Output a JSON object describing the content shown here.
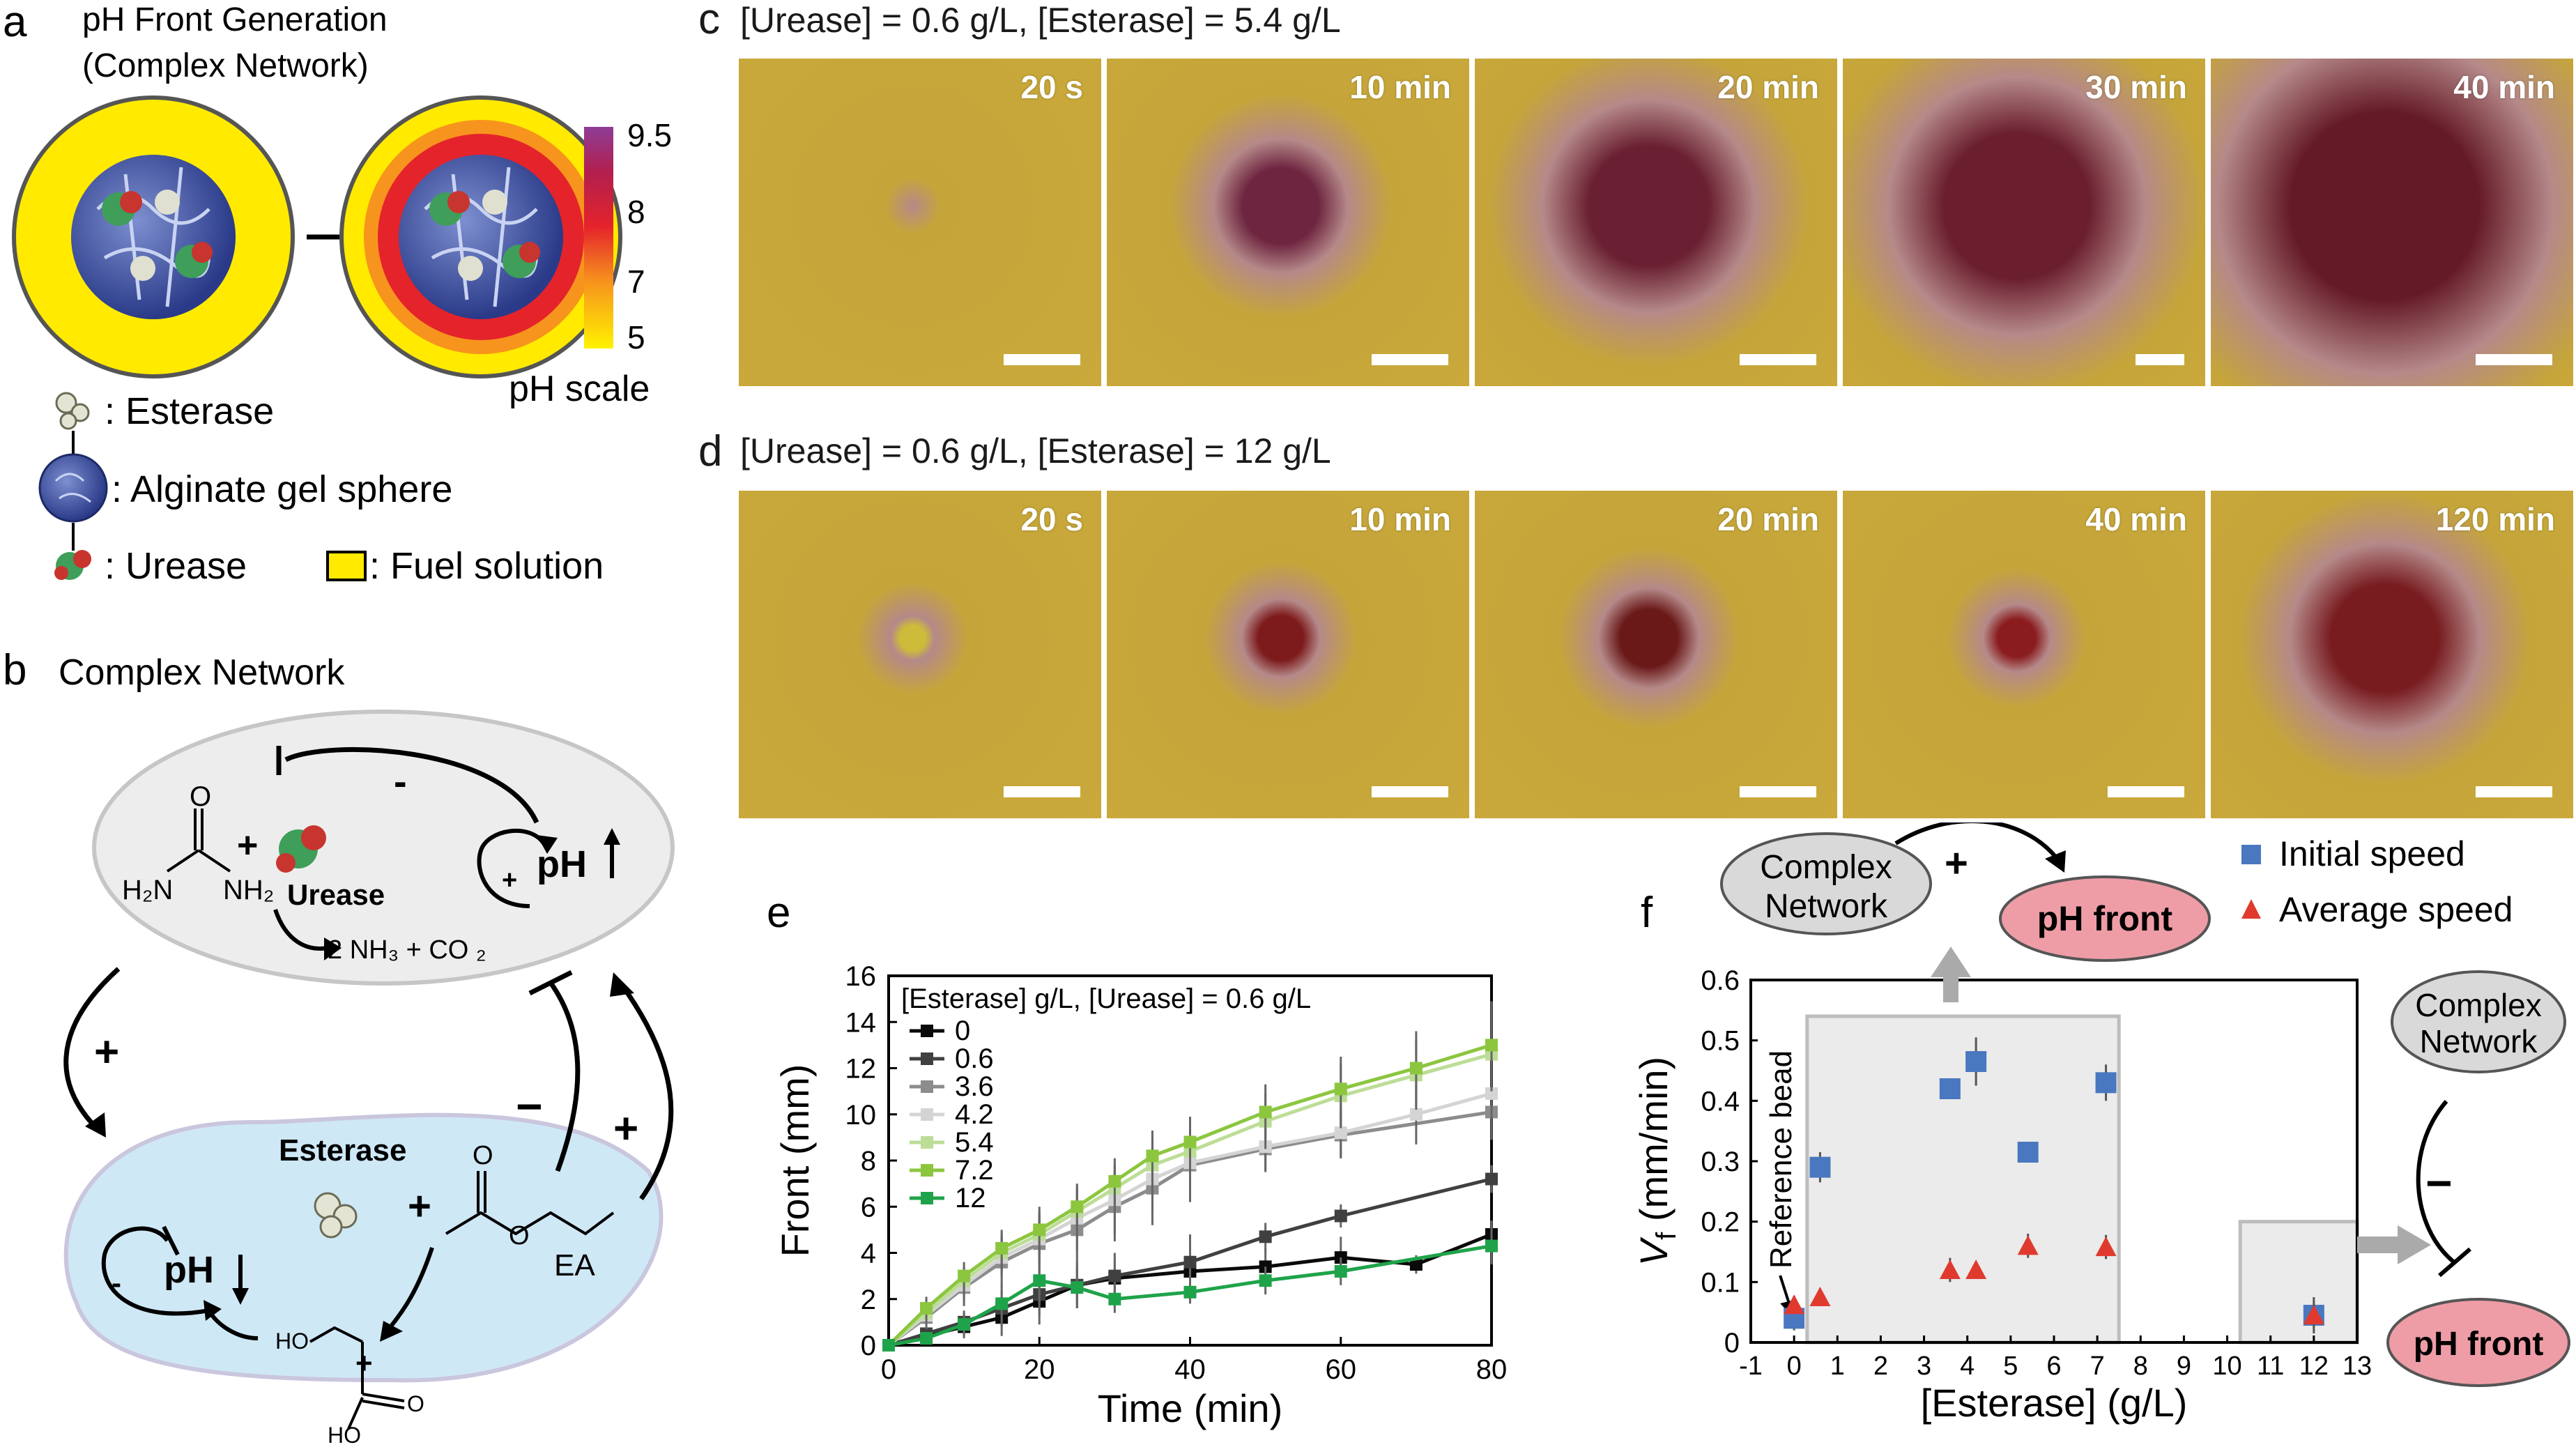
{
  "panel_a": {
    "letter": "a",
    "title_line1": "pH Front Generation",
    "title_line2": "(Complex Network)",
    "ph_scale_label": "pH scale",
    "ph_scale_ticks": [
      "9.5",
      "8",
      "7",
      "5"
    ],
    "legend": {
      "esterase": ": Esterase",
      "alginate": ": Alginate gel sphere",
      "urease": ": Urease",
      "fuel": ": Fuel solution"
    },
    "colors": {
      "fuel_yellow": "#FFEA00",
      "ph_red": "#E5232B",
      "ph_purple": "#8E3D97",
      "gel_blue": "#3A4FA0"
    }
  },
  "panel_b": {
    "letter": "b",
    "title": "Complex Network",
    "urease_label": "Urease",
    "h2n": "H₂N",
    "nh2": "NH₂",
    "o": "O",
    "products": "2 NH₃ + CO ₂",
    "ph_top": "pH",
    "esterase_label": "Esterase",
    "ea_label": "EA",
    "ph_bottom": "pH",
    "ho": "HO",
    "oh": "HO",
    "plus": "+",
    "minus": "−",
    "minus_short": "-",
    "colors": {
      "top_cell": "#EDEDED",
      "bottom_cell": "#CFE8F6"
    }
  },
  "panel_c": {
    "letter": "c",
    "title": "[Urease] = 0.6 g/L, [Esterase] = 5.4 g/L",
    "times": [
      "20 s",
      "10 min",
      "20 min",
      "30 min",
      "40 min"
    ]
  },
  "panel_d": {
    "letter": "d",
    "title": "[Urease] = 0.6 g/L, [Esterase] = 12 g/L",
    "times": [
      "20 s",
      "10 min",
      "20 min",
      "40 min",
      "120 min"
    ]
  },
  "chart_data": [
    {
      "id": "e",
      "letter": "e",
      "type": "line",
      "xlabel": "Time (min)",
      "ylabel": "Front (mm)",
      "xlim": [
        0,
        80
      ],
      "ylim": [
        0,
        16
      ],
      "xticks": [
        0,
        20,
        40,
        60,
        80
      ],
      "yticks": [
        0,
        2,
        4,
        6,
        8,
        10,
        12,
        14,
        16
      ],
      "legend_title": "[Esterase] g/L, [Urease] = 0.6 g/L",
      "legend_position": "top-left",
      "series": [
        {
          "name": "0",
          "color": "#0A0A0A",
          "x": [
            0,
            5,
            10,
            15,
            20,
            25,
            30,
            40,
            50,
            60,
            70,
            80
          ],
          "y": [
            0,
            0.4,
            0.8,
            1.2,
            1.9,
            2.6,
            2.9,
            3.2,
            3.4,
            3.8,
            3.5,
            4.8
          ],
          "err": [
            0,
            0.3,
            0.5,
            0.8,
            1.0,
            1.0,
            0.8,
            0.7,
            0.8,
            0.9,
            0.4,
            0.6
          ]
        },
        {
          "name": "0.6",
          "color": "#404040",
          "x": [
            0,
            5,
            10,
            15,
            20,
            25,
            30,
            40,
            50,
            60,
            80
          ],
          "y": [
            0,
            0.5,
            1.0,
            1.6,
            2.2,
            2.6,
            3.0,
            3.6,
            4.7,
            5.6,
            7.2
          ],
          "err": [
            0,
            0.3,
            0.5,
            0.8,
            0.9,
            0.9,
            1.0,
            1.2,
            0.6,
            0.5,
            0.6
          ]
        },
        {
          "name": "3.6",
          "color": "#8C8C8C",
          "x": [
            0,
            5,
            10,
            15,
            20,
            25,
            30,
            35,
            40,
            50,
            60,
            80
          ],
          "y": [
            0,
            1.2,
            2.5,
            3.6,
            4.4,
            5.0,
            6.0,
            6.8,
            7.8,
            8.5,
            9.1,
            10.1
          ],
          "err": [
            0,
            0.5,
            0.8,
            1.1,
            1.3,
            1.5,
            1.5,
            1.6,
            1.6,
            1.0,
            1.0,
            1.2
          ]
        },
        {
          "name": "4.2",
          "color": "#D4D4D4",
          "x": [
            0,
            5,
            10,
            15,
            20,
            25,
            30,
            35,
            40,
            50,
            60,
            70,
            80
          ],
          "y": [
            0,
            1.3,
            2.6,
            3.8,
            4.6,
            5.5,
            6.3,
            7.2,
            7.9,
            8.6,
            9.2,
            10.0,
            10.9
          ],
          "err": [
            0,
            0.4,
            0.6,
            0.8,
            1.0,
            1.4,
            1.5,
            1.4,
            1.3,
            1.0,
            1.1,
            1.3,
            1.6
          ]
        },
        {
          "name": "5.4",
          "color": "#BCDD96",
          "x": [
            0,
            5,
            10,
            15,
            20,
            25,
            30,
            35,
            40,
            50,
            60,
            70,
            80
          ],
          "y": [
            0,
            1.4,
            2.8,
            4.0,
            4.8,
            5.8,
            6.8,
            7.8,
            8.4,
            9.7,
            10.8,
            11.7,
            12.6
          ],
          "err": [
            0,
            0.4,
            0.6,
            0.8,
            1.0,
            1.0,
            1.0,
            1.1,
            1.1,
            1.2,
            1.4,
            1.5,
            1.6
          ]
        },
        {
          "name": "7.2",
          "color": "#8CC63F",
          "x": [
            0,
            5,
            10,
            15,
            20,
            25,
            30,
            35,
            40,
            50,
            60,
            70,
            80
          ],
          "y": [
            0,
            1.6,
            3.0,
            4.2,
            5.0,
            6.0,
            7.1,
            8.2,
            8.8,
            10.1,
            11.1,
            12.0,
            13.0
          ],
          "err": [
            0,
            0.5,
            0.6,
            0.8,
            1.0,
            1.0,
            1.0,
            1.1,
            1.1,
            1.2,
            1.4,
            1.6,
            1.9
          ]
        },
        {
          "name": "12",
          "color": "#1FA34A",
          "x": [
            0,
            5,
            10,
            15,
            20,
            25,
            30,
            40,
            50,
            60,
            80
          ],
          "y": [
            0,
            0.3,
            0.9,
            1.8,
            2.8,
            2.5,
            2.0,
            2.3,
            2.8,
            3.2,
            4.3
          ],
          "err": [
            0,
            0.2,
            0.5,
            0.8,
            1.0,
            0.9,
            0.6,
            0.5,
            0.6,
            0.6,
            0.8
          ]
        }
      ]
    },
    {
      "id": "f",
      "letter": "f",
      "type": "scatter",
      "xlabel": "[Esterase] (g/L)",
      "ylabel_main": "V",
      "ylabel_sub": "f",
      "ylabel_rest": " (mm/min)",
      "xlim": [
        -1,
        13
      ],
      "ylim": [
        0,
        0.6
      ],
      "xticks": [
        -1,
        0,
        1,
        2,
        3,
        4,
        5,
        6,
        7,
        8,
        9,
        10,
        11,
        12,
        13
      ],
      "yticks": [
        "0",
        "0.1",
        "0.2",
        "0.3",
        "0.4",
        "0.5",
        "0.6"
      ],
      "legend_position": "top-right",
      "annotation": "Reference bead",
      "shaded_regions": [
        {
          "x": [
            0.3,
            7.5
          ],
          "y": [
            0,
            0.54
          ]
        },
        {
          "x": [
            10.3,
            13
          ],
          "y": [
            0,
            0.2
          ]
        }
      ],
      "series": [
        {
          "name": "Initial speed",
          "marker": "square",
          "color": "#4A78C0",
          "x": [
            0,
            0.6,
            3.6,
            4.2,
            5.4,
            7.2,
            12
          ],
          "y": [
            0.04,
            0.29,
            0.42,
            0.465,
            0.315,
            0.43,
            0.045
          ],
          "err": [
            0.02,
            0.025,
            0.015,
            0.04,
            0.01,
            0.03,
            0.03
          ]
        },
        {
          "name": "Average speed",
          "marker": "triangle",
          "color": "#E03A2E",
          "x": [
            0,
            0.6,
            3.6,
            4.2,
            5.4,
            7.2,
            12
          ],
          "y": [
            0.062,
            0.075,
            0.12,
            0.12,
            0.16,
            0.158,
            0.045
          ],
          "err": [
            0.015,
            0.005,
            0.02,
            0.01,
            0.02,
            0.02,
            0.02
          ]
        }
      ]
    }
  ],
  "panel_f_schemes": {
    "complex_network": "Complex",
    "complex_network_2": "Network",
    "ph_front": "pH front",
    "plus": "+",
    "minus": "−",
    "colors": {
      "node_grey": "#D9D9D9",
      "node_pink": "#EE9DA7"
    }
  }
}
